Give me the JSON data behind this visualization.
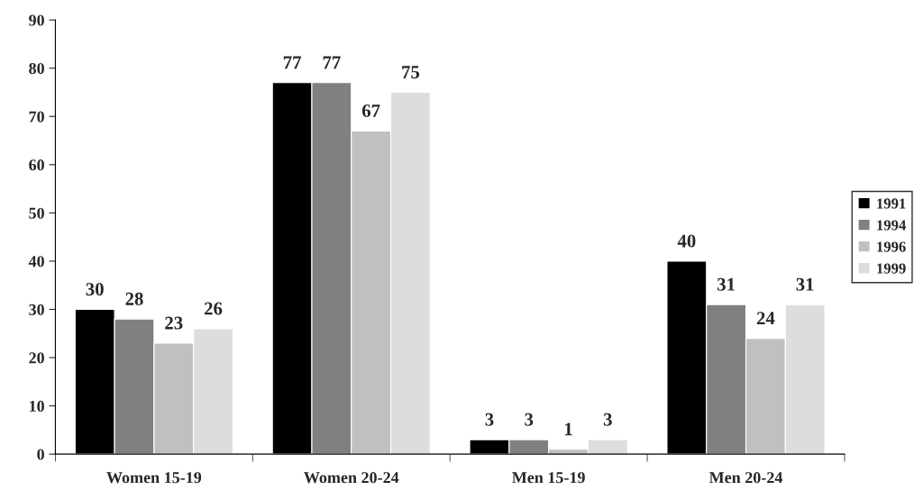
{
  "chart_data": {
    "type": "bar",
    "categories": [
      "Women 15-19",
      "Women 20-24",
      "Men 15-19",
      "Men 20-24"
    ],
    "series": [
      {
        "name": "1991",
        "color": "#000000",
        "values": [
          30,
          77,
          3,
          40
        ]
      },
      {
        "name": "1994",
        "color": "#808080",
        "values": [
          28,
          77,
          3,
          31
        ]
      },
      {
        "name": "1996",
        "color": "#c0c0c0",
        "values": [
          23,
          67,
          1,
          24
        ]
      },
      {
        "name": "1999",
        "color": "#dddddd",
        "values": [
          26,
          75,
          3,
          31
        ]
      }
    ],
    "ylim": [
      0,
      90
    ],
    "yticks": [
      0,
      10,
      20,
      30,
      40,
      50,
      60,
      70,
      80,
      90
    ],
    "data_labels": true,
    "grid": false,
    "legend": "right"
  }
}
